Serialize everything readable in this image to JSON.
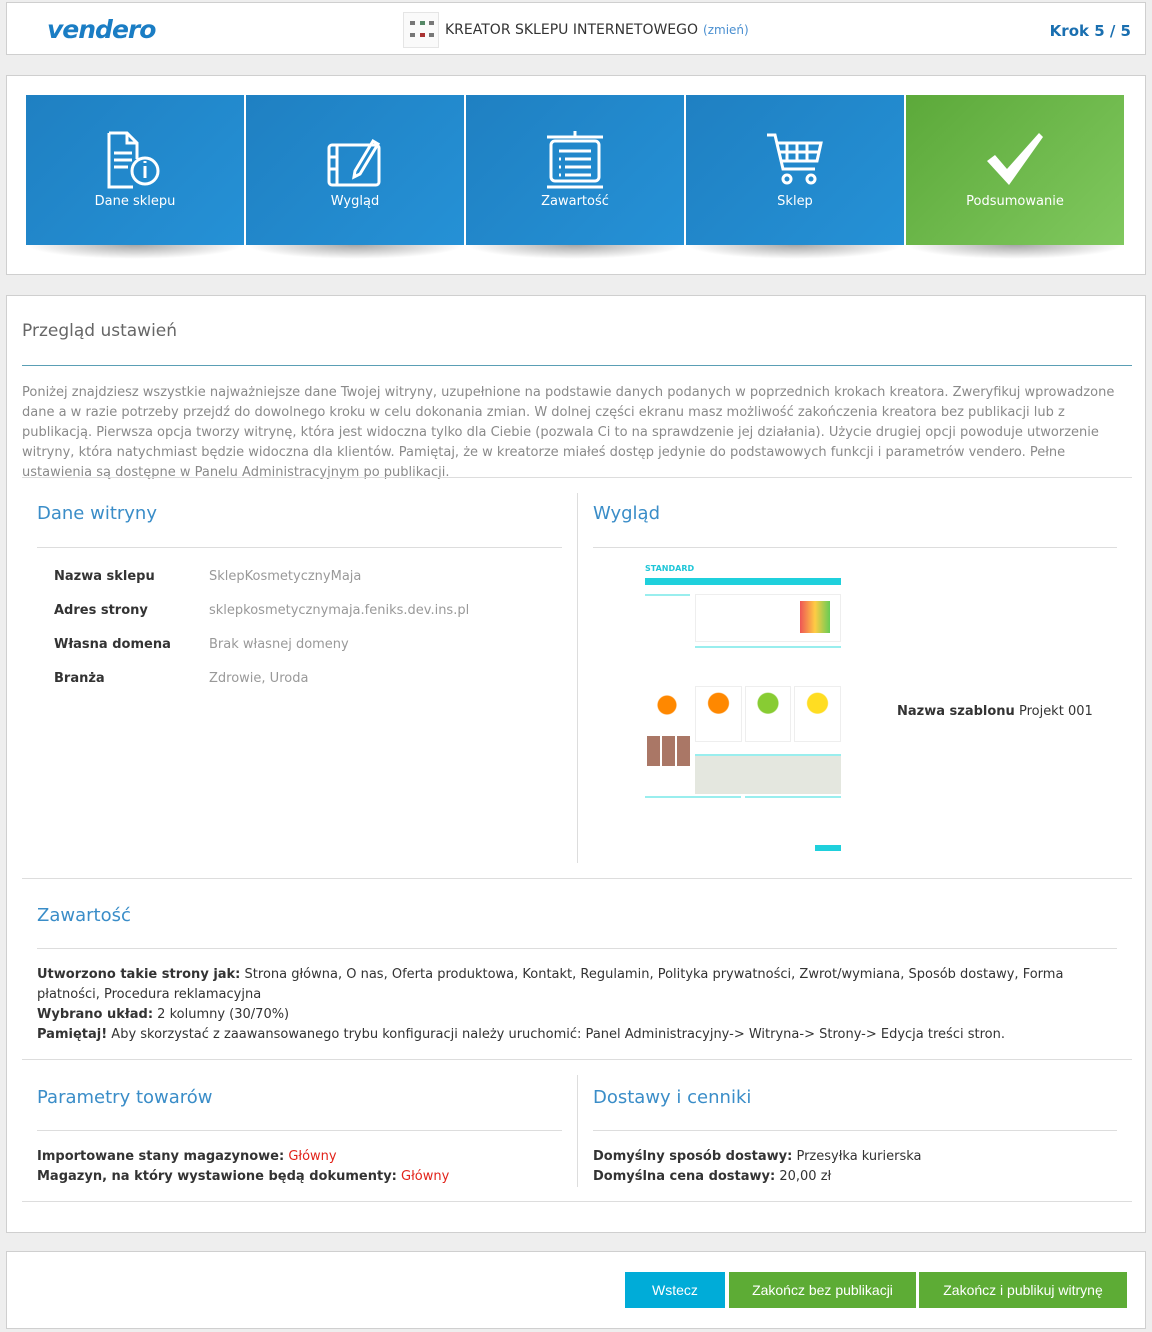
{
  "header": {
    "logo": "vendero",
    "wizard_title": "KREATOR SKLEPU INTERNETOWEGO",
    "change_link": "(zmień)",
    "step": "Krok 5 / 5"
  },
  "steps": [
    {
      "label": "Dane sklepu",
      "icon": "document-info-icon"
    },
    {
      "label": "Wygląd",
      "icon": "edit-pencil-icon"
    },
    {
      "label": "Zawartość",
      "icon": "content-list-icon"
    },
    {
      "label": "Sklep",
      "icon": "cart-icon"
    },
    {
      "label": "Podsumowanie",
      "icon": "check-icon",
      "active": true
    }
  ],
  "main": {
    "title": "Przegląd ustawień",
    "intro": "Poniżej znajdziesz wszystkie najważniejsze dane Twojej witryny, uzupełnione na podstawie danych podanych w poprzednich krokach kreatora. Zweryfikuj wprowadzone dane a w razie potrzeby przejdź do dowolnego kroku w celu dokonania zmian. W dolnej części ekranu masz możliwość zakończenia kreatora bez publikacji lub z publikacją. Pierwsza opcja tworzy witrynę, która jest widoczna tylko dla Ciebie (pozwala Ci to na sprawdzenie jej działania). Użycie drugiej opcji powoduje utworzenie witryny, która natychmiast będzie widoczna dla klientów. Pamiętaj, że w kreatorze miałeś dostęp jedynie do podstawowych funkcji i parametrów vendero. Pełne ustawienia są dostępne w Panelu Administracyjnym po publikacji.",
    "site": {
      "title": "Dane witryny",
      "rows": [
        {
          "label": "Nazwa sklepu",
          "value": "SklepKosmetycznyMaja"
        },
        {
          "label": "Adres strony",
          "value": "sklepkosmetycznymaja.feniks.dev.ins.pl"
        },
        {
          "label": "Własna domena",
          "value": "Brak własnej domeny"
        },
        {
          "label": "Branża",
          "value": "Zdrowie, Uroda"
        }
      ]
    },
    "look": {
      "title": "Wygląd",
      "template_label": "Nazwa szablonu",
      "template_value": "Projekt 001",
      "preview_logo": "STANDARD"
    },
    "content": {
      "title": "Zawartość",
      "pages_label": "Utworzono takie strony jak:",
      "pages_value": "Strona główna, O nas, Oferta produktowa, Kontakt, Regulamin, Polityka prywatności, Zwrot/wymiana, Sposób dostawy, Forma płatności, Procedura reklamacyjna",
      "layout_label": "Wybrano układ:",
      "layout_value": "2 kolumny (30/70%)",
      "note_label": "Pamiętaj!",
      "note_value": "Aby skorzystać z zaawansowanego trybu konfiguracji należy uruchomić: Panel Administracyjny-> Witryna-> Strony-> Edycja treści stron."
    },
    "products": {
      "title": "Parametry towarów",
      "stock_label": "Importowane stany magazynowe:",
      "stock_value": "Główny",
      "warehouse_label": "Magazyn, na który wystawione będą dokumenty:",
      "warehouse_value": "Główny"
    },
    "delivery": {
      "title": "Dostawy i cenniki",
      "method_label": "Domyślny sposób dostawy:",
      "method_value": "Przesyłka kurierska",
      "price_label": "Domyślna cena dostawy:",
      "price_value": "20,00 zł"
    }
  },
  "footer": {
    "back": "Wstecz",
    "finish_no_publish": "Zakończ bez publikacji",
    "finish_publish": "Zakończ i publikuj witrynę"
  },
  "colors": {
    "blue_tile": "#2189cc",
    "green_tile": "#6cb84a",
    "back_button": "#00acd8",
    "finish_button": "#5dac35",
    "section_title": "#3a8dc8",
    "highlight": "#e2231a"
  }
}
